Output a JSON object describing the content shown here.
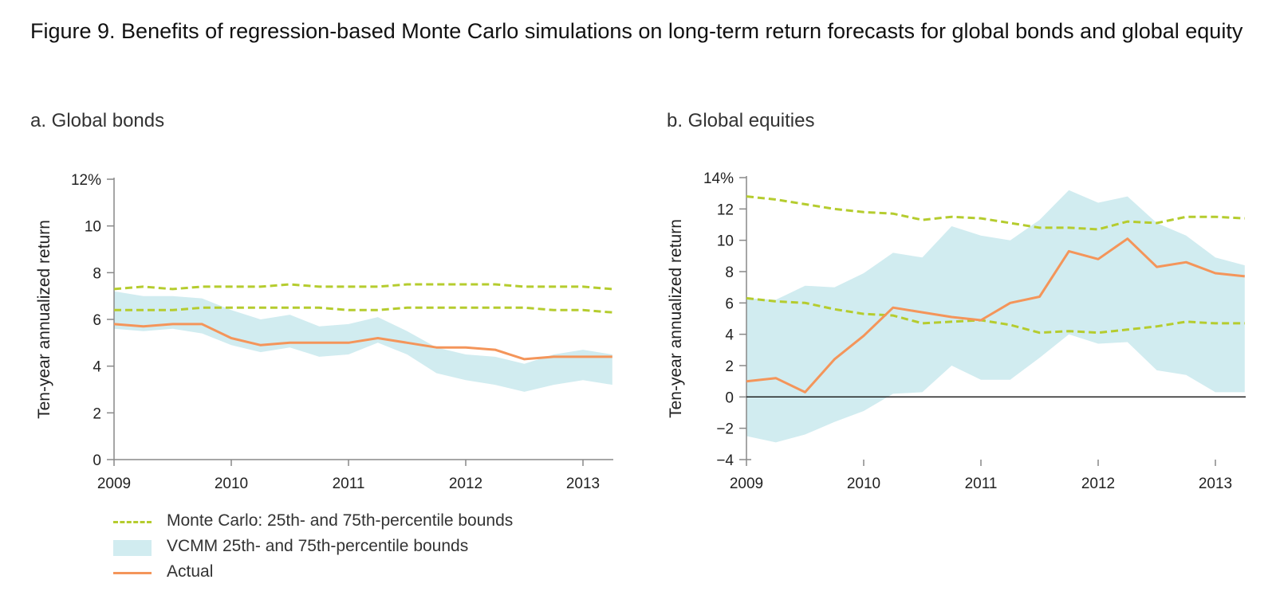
{
  "figure_title": "Figure 9. Benefits of regression-based Monte Carlo simulations on long-term return forecasts for global bonds and global equity",
  "colors": {
    "monte_carlo": "#b5cc2e",
    "vcmm_band": "#d1ecf0",
    "actual": "#f4955a",
    "axis": "#888888",
    "zero_line": "#111111"
  },
  "legend": {
    "items": [
      {
        "label": "Monte Carlo: 25th- and 75th-percentile bounds",
        "style": "dashed-line",
        "color": "#b5cc2e"
      },
      {
        "label": "VCMM 25th- and 75th-percentile bounds",
        "style": "band",
        "color": "#d1ecf0"
      },
      {
        "label": "Actual",
        "style": "solid-line",
        "color": "#f4955a"
      }
    ]
  },
  "chart_data": [
    {
      "type": "line",
      "title": "a. Global bonds",
      "xlabel": "",
      "ylabel": "Ten-year annualized return",
      "x_tick_labels": [
        "2009",
        "2010",
        "2011",
        "2012",
        "2013"
      ],
      "y_tick_labels": [
        "0",
        "2",
        "4",
        "6",
        "8",
        "10",
        "12%"
      ],
      "y_ticks": [
        0,
        2,
        4,
        6,
        8,
        10,
        12
      ],
      "xlim": [
        2009,
        2013.25
      ],
      "ylim": [
        0,
        12
      ],
      "grid": false,
      "x": [
        2009,
        2009.25,
        2009.5,
        2009.75,
        2010,
        2010.25,
        2010.5,
        2010.75,
        2011,
        2011.25,
        2011.5,
        2011.75,
        2012,
        2012.25,
        2012.5,
        2012.75,
        2013,
        2013.25
      ],
      "series": [
        {
          "name": "Monte Carlo: 25th- and 75th-percentile bounds",
          "role": "mc_upper",
          "values": [
            7.3,
            7.4,
            7.3,
            7.4,
            7.4,
            7.4,
            7.5,
            7.4,
            7.4,
            7.4,
            7.5,
            7.5,
            7.5,
            7.5,
            7.4,
            7.4,
            7.4,
            7.3
          ]
        },
        {
          "name": "Monte Carlo: 25th- and 75th-percentile bounds",
          "role": "mc_lower",
          "values": [
            6.4,
            6.4,
            6.4,
            6.5,
            6.5,
            6.5,
            6.5,
            6.5,
            6.4,
            6.4,
            6.5,
            6.5,
            6.5,
            6.5,
            6.5,
            6.4,
            6.4,
            6.3
          ]
        },
        {
          "name": "VCMM 25th- and 75th-percentile bounds",
          "role": "band_upper",
          "values": [
            7.2,
            7.0,
            7.0,
            6.9,
            6.4,
            6.0,
            6.2,
            5.7,
            5.8,
            6.1,
            5.5,
            4.8,
            4.5,
            4.4,
            4.1,
            4.5,
            4.7,
            4.5
          ]
        },
        {
          "name": "VCMM 25th- and 75th-percentile bounds",
          "role": "band_lower",
          "values": [
            5.6,
            5.5,
            5.6,
            5.4,
            4.9,
            4.6,
            4.8,
            4.4,
            4.5,
            5.0,
            4.5,
            3.7,
            3.4,
            3.2,
            2.9,
            3.2,
            3.4,
            3.2
          ]
        },
        {
          "name": "Actual",
          "role": "actual",
          "values": [
            5.8,
            5.7,
            5.8,
            5.8,
            5.2,
            4.9,
            5.0,
            5.0,
            5.0,
            5.2,
            5.0,
            4.8,
            4.8,
            4.7,
            4.3,
            4.4,
            4.4,
            4.4
          ]
        }
      ]
    },
    {
      "type": "line",
      "title": "b. Global equities",
      "xlabel": "",
      "ylabel": "Ten-year annualized return",
      "x_tick_labels": [
        "2009",
        "2010",
        "2011",
        "2012",
        "2013"
      ],
      "y_tick_labels": [
        "−4",
        "−2",
        "0",
        "2",
        "4",
        "6",
        "8",
        "10",
        "12",
        "14%"
      ],
      "y_ticks": [
        -4,
        -2,
        0,
        2,
        4,
        6,
        8,
        10,
        12,
        14
      ],
      "xlim": [
        2009,
        2013.25
      ],
      "ylim": [
        -4,
        14
      ],
      "grid": false,
      "zero_line": true,
      "x": [
        2009,
        2009.25,
        2009.5,
        2009.75,
        2010,
        2010.25,
        2010.5,
        2010.75,
        2011,
        2011.25,
        2011.5,
        2011.75,
        2012,
        2012.25,
        2012.5,
        2012.75,
        2013,
        2013.25
      ],
      "series": [
        {
          "name": "Monte Carlo: 25th- and 75th-percentile bounds",
          "role": "mc_upper",
          "values": [
            12.8,
            12.6,
            12.3,
            12.0,
            11.8,
            11.7,
            11.3,
            11.5,
            11.4,
            11.1,
            10.8,
            10.8,
            10.7,
            11.2,
            11.1,
            11.5,
            11.5,
            11.4
          ]
        },
        {
          "name": "Monte Carlo: 25th- and 75th-percentile bounds",
          "role": "mc_lower",
          "values": [
            6.3,
            6.1,
            6.0,
            5.6,
            5.3,
            5.2,
            4.7,
            4.8,
            4.9,
            4.6,
            4.1,
            4.2,
            4.1,
            4.3,
            4.5,
            4.8,
            4.7,
            4.7
          ]
        },
        {
          "name": "VCMM 25th- and 75th-percentile bounds",
          "role": "band_upper",
          "values": [
            6.3,
            6.2,
            7.1,
            7.0,
            7.9,
            9.2,
            8.9,
            10.9,
            10.3,
            10.0,
            11.3,
            13.2,
            12.4,
            12.8,
            11.1,
            10.3,
            8.9,
            8.4
          ]
        },
        {
          "name": "VCMM 25th- and 75th-percentile bounds",
          "role": "band_lower",
          "values": [
            -2.5,
            -2.9,
            -2.4,
            -1.6,
            -0.9,
            0.2,
            0.3,
            2.0,
            1.1,
            1.1,
            2.5,
            4.0,
            3.4,
            3.5,
            1.7,
            1.4,
            0.3,
            0.3
          ]
        },
        {
          "name": "Actual",
          "role": "actual",
          "values": [
            1.0,
            1.2,
            0.3,
            2.4,
            3.9,
            5.7,
            5.4,
            5.1,
            4.9,
            6.0,
            6.4,
            9.3,
            8.8,
            10.1,
            8.3,
            8.6,
            7.9,
            7.7
          ]
        }
      ]
    }
  ]
}
